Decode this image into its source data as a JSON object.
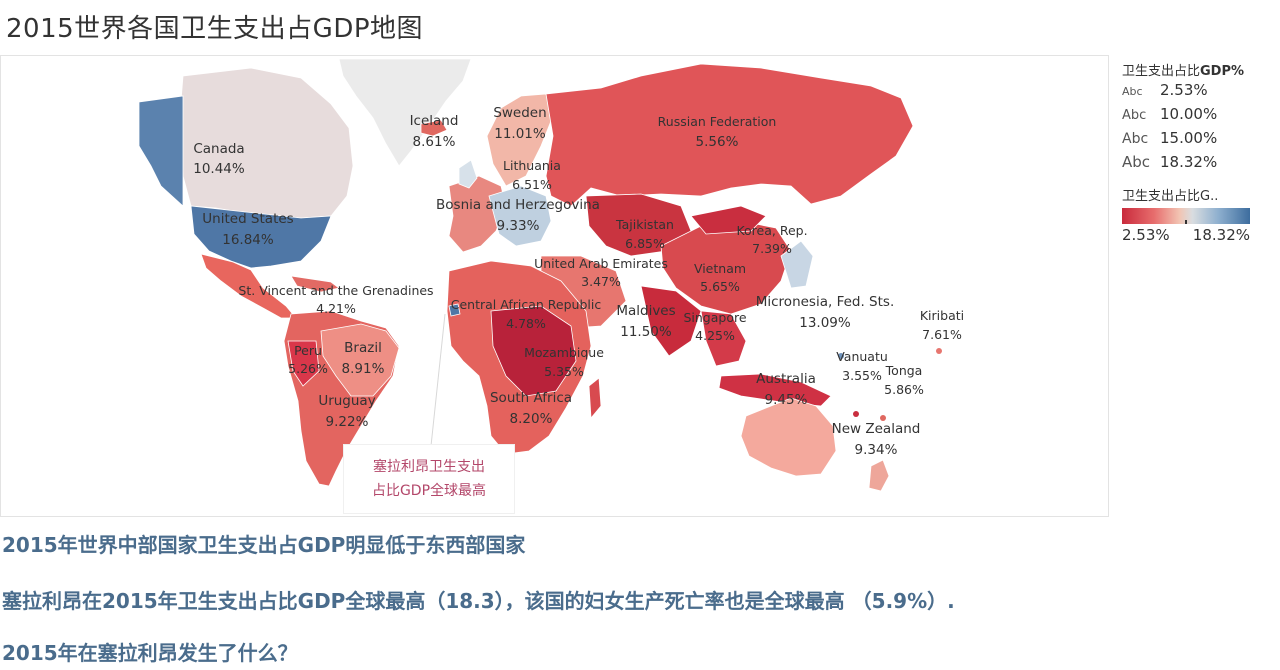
{
  "title": "2015世界各国卫生支出占GDP地图",
  "colors": {
    "low": "#c92a3c",
    "mid_low": "#e76d6d",
    "mid": "#f2c4b3",
    "neutral": "#d9dde0",
    "high": "#3d6d9e",
    "no_data": "#ebebeb"
  },
  "map": {
    "labels": [
      {
        "name": "Canada",
        "value": "10.44%"
      },
      {
        "name": "United States",
        "value": "16.84%"
      },
      {
        "name": "Iceland",
        "value": "8.61%"
      },
      {
        "name": "Sweden",
        "value": "11.01%"
      },
      {
        "name": "Lithuania",
        "value": "6.51%"
      },
      {
        "name": "Bosnia and Herzegovina",
        "value": "9.33%"
      },
      {
        "name": "Russian Federation",
        "value": "5.56%"
      },
      {
        "name": "Tajikistan",
        "value": "6.85%"
      },
      {
        "name": "Korea, Rep.",
        "value": "7.39%"
      },
      {
        "name": "United Arab Emirates",
        "value": "3.47%"
      },
      {
        "name": "Vietnam",
        "value": "5.65%"
      },
      {
        "name": "St. Vincent and the Grenadines",
        "value": "4.21%"
      },
      {
        "name": "Central African Republic",
        "value": "4.78%"
      },
      {
        "name": "Maldives",
        "value": "11.50%"
      },
      {
        "name": "Singapore",
        "value": "4.25%"
      },
      {
        "name": "Micronesia, Fed. Sts.",
        "value": "13.09%"
      },
      {
        "name": "Kiribati",
        "value": "7.61%"
      },
      {
        "name": "Peru",
        "value": "5.26%"
      },
      {
        "name": "Brazil",
        "value": "8.91%"
      },
      {
        "name": "Mozambique",
        "value": "5.35%"
      },
      {
        "name": "Vanuatu",
        "value": "3.55%"
      },
      {
        "name": "Tonga",
        "value": "5.86%"
      },
      {
        "name": "Uruguay",
        "value": "9.22%"
      },
      {
        "name": "South Africa",
        "value": "8.20%"
      },
      {
        "name": "Australia",
        "value": "9.45%"
      },
      {
        "name": "New Zealand",
        "value": "9.34%"
      }
    ],
    "annotation": {
      "line1": "塞拉利昂卫生支出",
      "line2": "占比GDP全球最高"
    }
  },
  "legend": {
    "size_title": "卫生支出占比",
    "size_title_bold": "GDP%",
    "abc": "Abc",
    "size_values": [
      "2.53%",
      "10.00%",
      "15.00%",
      "18.32%"
    ],
    "color_title": "卫生支出占比G..",
    "color_min": "2.53%",
    "color_max": "18.32%"
  },
  "commentary": [
    "2015年世界中部国家卫生支出占GDP明显低于东西部国家",
    "塞拉利昂在2015年卫生支出占比GDP全球最高（18.3），该国的妇女生产死亡率也是全球最高 （5.9%）.",
    "2015年在塞拉利昂发生了什么？"
  ]
}
